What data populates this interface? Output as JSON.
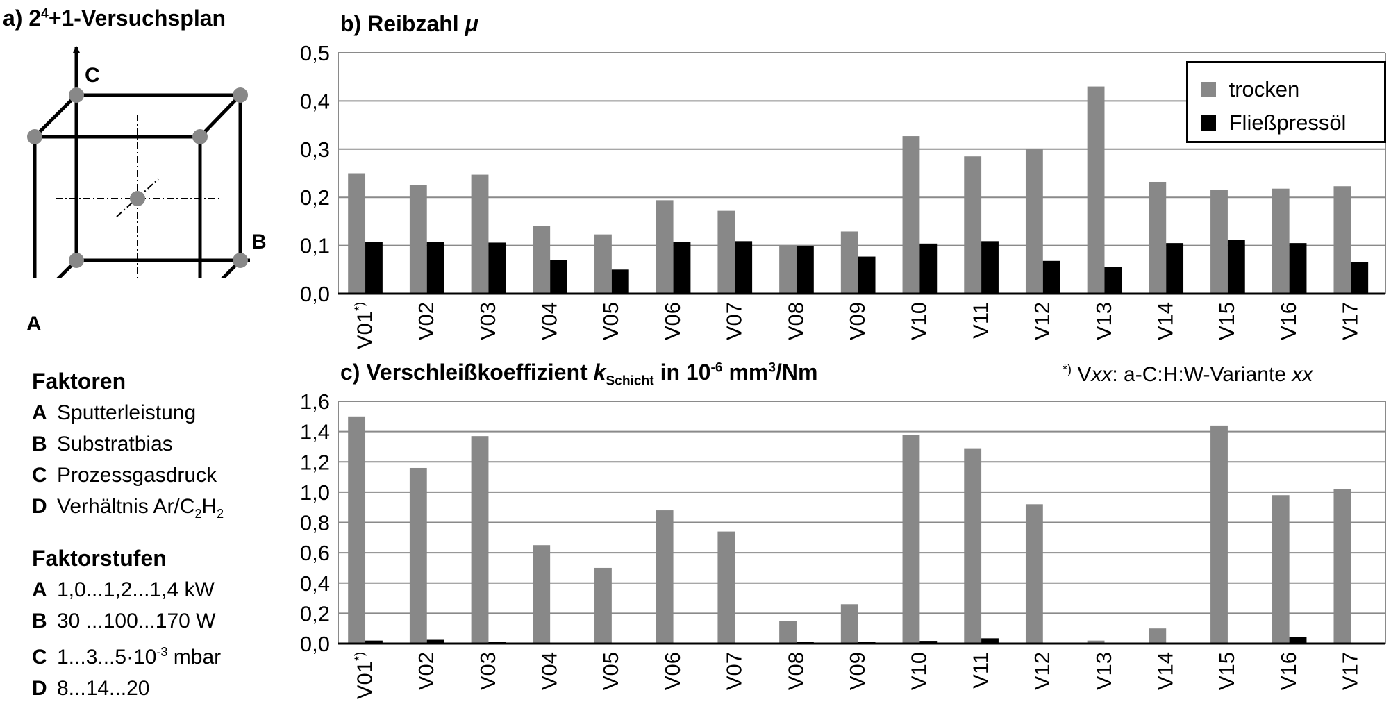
{
  "panel_a": {
    "title_pre": "a) 2",
    "title_sup": "4",
    "title_post": "+1-Versuchsplan",
    "axis_a": "A",
    "axis_b": "B",
    "axis_c": "C"
  },
  "factors": {
    "heading": "Faktoren",
    "items": [
      {
        "key": "A",
        "text": "Sputterleistung"
      },
      {
        "key": "B",
        "text": "Substratbias"
      },
      {
        "key": "C",
        "text": "Prozessgasdruck"
      },
      {
        "key": "D",
        "text_pre": "Verhältnis Ar/C",
        "sub1": "2",
        "mid": "H",
        "sub2": "2"
      }
    ]
  },
  "levels": {
    "heading": "Faktorstufen",
    "items": [
      {
        "key": "A",
        "text": "1,0...1,2...1,4 kW"
      },
      {
        "key": "B",
        "text": "30 ...100...170 W"
      },
      {
        "key": "C",
        "text_pre": "1...3...5·10",
        "sup": "-3",
        "text_post": " mbar"
      },
      {
        "key": "D",
        "text": "8...14...20"
      }
    ]
  },
  "footnote": {
    "mark": "*)",
    "pre": " V",
    "ital1": "xx",
    "mid": ": a-C:H:W-Variante ",
    "ital2": "xx"
  },
  "chart_data": [
    {
      "type": "bar",
      "title": "b) Reibzahl μ",
      "title_text": "b) Reibzahl ",
      "title_symbol": "μ",
      "categories": [
        "V01*)",
        "V02",
        "V03",
        "V04",
        "V05",
        "V06",
        "V07",
        "V08",
        "V09",
        "V10",
        "V11",
        "V12",
        "V13",
        "V14",
        "V15",
        "V16",
        "V17"
      ],
      "ylim": [
        0,
        0.5
      ],
      "yticks": [
        0.0,
        0.1,
        0.2,
        0.3,
        0.4,
        0.5
      ],
      "ytick_labels": [
        "0,0",
        "0,1",
        "0,2",
        "0,3",
        "0,4",
        "0,5"
      ],
      "grid": true,
      "legend": "top-right",
      "series": [
        {
          "name": "trocken",
          "color": "#888888",
          "values": [
            0.25,
            0.225,
            0.247,
            0.141,
            0.123,
            0.194,
            0.172,
            0.098,
            0.129,
            0.327,
            0.285,
            0.3,
            0.43,
            0.232,
            0.215,
            0.218,
            0.223
          ]
        },
        {
          "name": "Fließpressöl",
          "color": "#000000",
          "values": [
            0.108,
            0.108,
            0.106,
            0.07,
            0.05,
            0.107,
            0.109,
            0.098,
            0.077,
            0.104,
            0.109,
            0.068,
            0.055,
            0.105,
            0.112,
            0.105,
            0.066
          ]
        }
      ]
    },
    {
      "type": "bar",
      "title": "c) Verschleißkoeffizient kSchicht in 10-6 mm3/Nm",
      "title_pre": "c) Verschleißkoeffizient ",
      "title_k": "k",
      "title_k_sub": "Schicht",
      "title_mid": " in 10",
      "title_sup1": "-6",
      "title_unit": " mm",
      "title_sup2": "3",
      "title_end": "/Nm",
      "categories": [
        "V01*)",
        "V02",
        "V03",
        "V04",
        "V05",
        "V06",
        "V07",
        "V08",
        "V09",
        "V10",
        "V11",
        "V12",
        "V13",
        "V14",
        "V15",
        "V16",
        "V17"
      ],
      "ylim": [
        0,
        1.6
      ],
      "yticks": [
        0.0,
        0.2,
        0.4,
        0.6,
        0.8,
        1.0,
        1.2,
        1.4,
        1.6
      ],
      "ytick_labels": [
        "0,0",
        "0,2",
        "0,4",
        "0,6",
        "0,8",
        "1,0",
        "1,2",
        "1,4",
        "1,6"
      ],
      "grid": true,
      "series": [
        {
          "name": "trocken",
          "color": "#888888",
          "values": [
            1.5,
            1.16,
            1.37,
            0.65,
            0.5,
            0.88,
            0.74,
            0.15,
            0.26,
            1.38,
            1.29,
            0.92,
            0.02,
            0.1,
            1.44,
            0.98,
            1.02
          ]
        },
        {
          "name": "Fließpressöl",
          "color": "#000000",
          "values": [
            0.02,
            0.025,
            0.01,
            0.0,
            0.0,
            0.0,
            0.0,
            0.01,
            0.01,
            0.018,
            0.035,
            0.0,
            0.0,
            0.0,
            0.0,
            0.045,
            0.0
          ]
        }
      ]
    }
  ]
}
